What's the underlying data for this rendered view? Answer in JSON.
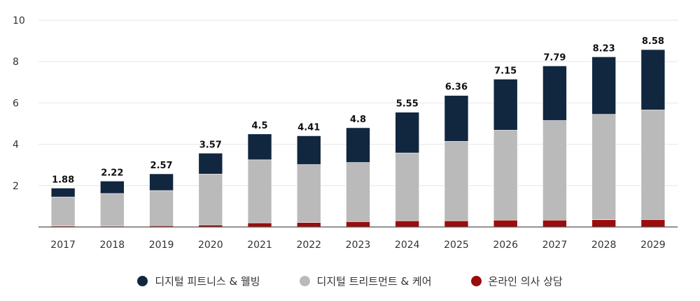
{
  "chart_data": {
    "type": "bar",
    "stacked": true,
    "title": "",
    "xlabel": "",
    "ylabel": "",
    "ylim": [
      0,
      10
    ],
    "yticks": [
      2,
      4,
      6,
      8,
      10
    ],
    "grid": true,
    "legend_position": "bottom",
    "categories": [
      "2017",
      "2018",
      "2019",
      "2020",
      "2021",
      "2022",
      "2023",
      "2024",
      "2025",
      "2026",
      "2027",
      "2028",
      "2029"
    ],
    "totals": [
      1.88,
      2.22,
      2.57,
      3.57,
      4.5,
      4.41,
      4.8,
      5.55,
      6.36,
      7.15,
      7.79,
      8.23,
      8.58
    ],
    "total_labels": [
      "1.88",
      "2.22",
      "2.57",
      "3.57",
      "4.5",
      "4.41",
      "4.8",
      "5.55",
      "6.36",
      "7.15",
      "7.79",
      "8.23",
      "8.58"
    ],
    "series": [
      {
        "name": "온라인 의사 상담",
        "color": "#9b0c0c",
        "values": [
          0.05,
          0.04,
          0.06,
          0.1,
          0.2,
          0.22,
          0.26,
          0.3,
          0.3,
          0.33,
          0.33,
          0.35,
          0.36
        ]
      },
      {
        "name": "디지털 트리트먼트 & 케어",
        "color": "#bababa",
        "values": [
          1.4,
          1.58,
          1.7,
          2.46,
          3.05,
          2.8,
          2.86,
          3.28,
          3.84,
          4.35,
          4.82,
          5.1,
          5.3
        ]
      },
      {
        "name": "디지털 피트니스 & 웰빙",
        "color": "#11263f",
        "values": [
          0.43,
          0.6,
          0.81,
          1.01,
          1.25,
          1.39,
          1.68,
          1.97,
          2.22,
          2.47,
          2.64,
          2.78,
          2.92
        ]
      }
    ]
  },
  "legend": [
    {
      "label": "디지털 피트니스 & 웰빙",
      "color": "#11263f"
    },
    {
      "label": "디지털 트리트먼트 & 케어",
      "color": "#bababa"
    },
    {
      "label": "온라인 의사 상담",
      "color": "#9b0c0c"
    }
  ]
}
